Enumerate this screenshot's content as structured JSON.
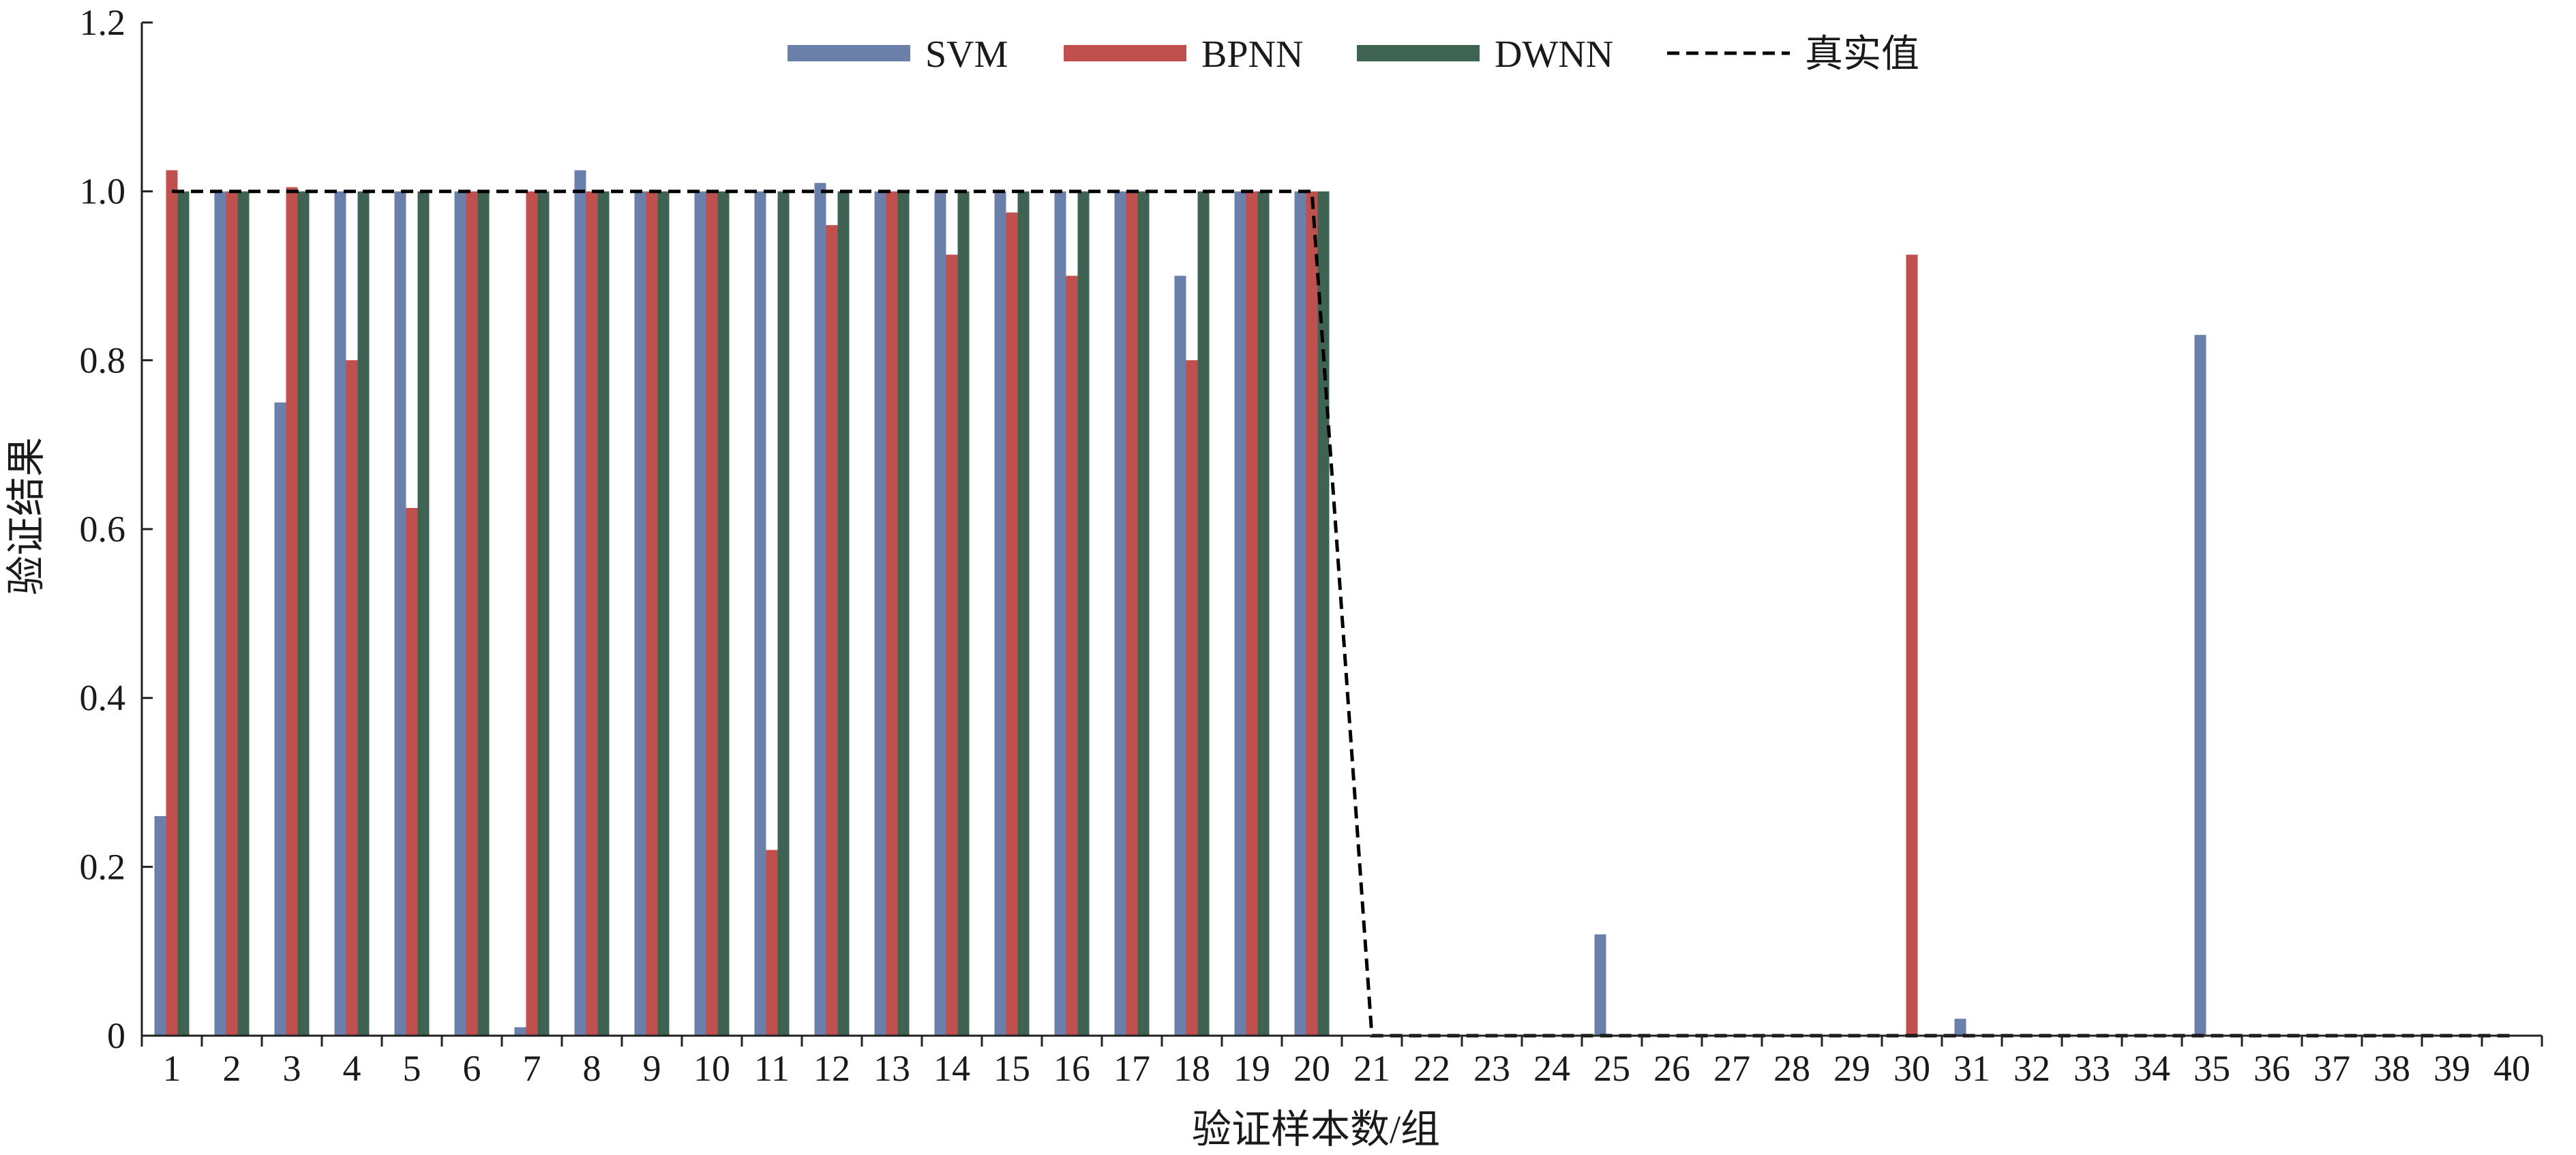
{
  "chart_data": {
    "type": "bar",
    "xlabel": "验证样本数/组",
    "ylabel": "验证结果",
    "ylim": [
      0,
      1.2
    ],
    "yticks": [
      "0",
      "0.2",
      "0.4",
      "0.6",
      "0.8",
      "1.0",
      "1.2"
    ],
    "categories": [
      "1",
      "2",
      "3",
      "4",
      "5",
      "6",
      "7",
      "8",
      "9",
      "10",
      "11",
      "12",
      "13",
      "14",
      "15",
      "16",
      "17",
      "18",
      "19",
      "20",
      "21",
      "22",
      "23",
      "24",
      "25",
      "26",
      "27",
      "28",
      "29",
      "30",
      "31",
      "32",
      "33",
      "34",
      "35",
      "36",
      "37",
      "38",
      "39",
      "40"
    ],
    "series": [
      {
        "name": "SVM",
        "color": "#6a7fa9",
        "values": [
          0.26,
          1.0,
          0.75,
          1.0,
          1.0,
          1.0,
          0.01,
          1.025,
          1.0,
          1.0,
          1.0,
          1.01,
          1.0,
          1.0,
          1.0,
          1.0,
          1.0,
          0.9,
          1.0,
          1.0,
          0,
          0,
          0,
          0,
          0.12,
          0,
          0,
          0,
          0,
          0,
          0.02,
          0,
          0,
          0,
          0.83,
          0,
          0,
          0,
          0,
          0
        ]
      },
      {
        "name": "BPNN",
        "color": "#c0504d",
        "values": [
          1.025,
          1.0,
          1.005,
          0.8,
          0.625,
          1.0,
          1.0,
          1.0,
          1.0,
          1.0,
          0.22,
          0.96,
          1.0,
          0.925,
          0.975,
          0.9,
          1.0,
          0.8,
          1.0,
          1.0,
          0,
          0,
          0,
          0,
          0,
          0,
          0,
          0,
          0,
          0.925,
          0,
          0,
          0,
          0,
          0,
          0,
          0,
          0,
          0,
          0
        ]
      },
      {
        "name": "DWNN",
        "color": "#3e6352",
        "values": [
          1.0,
          1.0,
          1.0,
          1.0,
          1.0,
          1.0,
          1.0,
          1.0,
          1.0,
          1.0,
          1.0,
          1.0,
          1.0,
          1.0,
          1.0,
          1.0,
          1.0,
          1.0,
          1.0,
          1.0,
          0,
          0,
          0,
          0,
          0,
          0,
          0,
          0,
          0,
          0,
          0,
          0,
          0,
          0,
          0,
          0,
          0,
          0,
          0,
          0
        ]
      }
    ],
    "reference_line": {
      "name": "真实值",
      "style": "dashed",
      "values": [
        1,
        1,
        1,
        1,
        1,
        1,
        1,
        1,
        1,
        1,
        1,
        1,
        1,
        1,
        1,
        1,
        1,
        1,
        1,
        1,
        0,
        0,
        0,
        0,
        0,
        0,
        0,
        0,
        0,
        0,
        0,
        0,
        0,
        0,
        0,
        0,
        0,
        0,
        0,
        0
      ]
    },
    "legend": {
      "placement": "top-center"
    },
    "grid": false
  }
}
